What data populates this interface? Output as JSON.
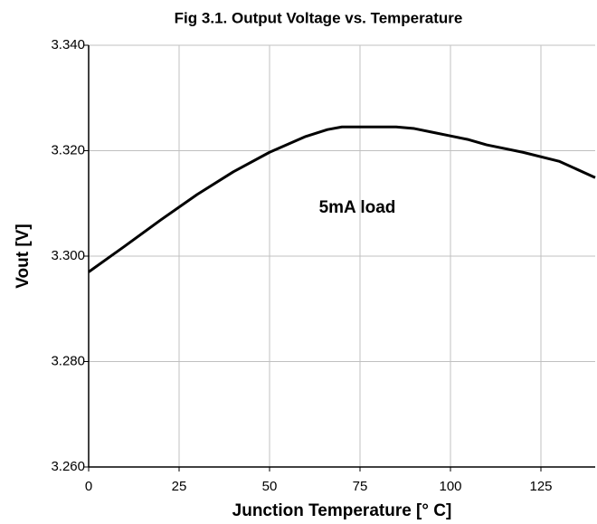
{
  "chart_data": {
    "type": "line",
    "title": "Fig 3.1. Output Voltage vs. Temperature",
    "x_label": "Junction Temperature [° C]",
    "y_label": "Vout [V]",
    "annotation": "5mA load",
    "x": [
      0,
      10,
      20,
      30,
      40,
      50,
      60,
      66,
      70,
      85,
      90,
      95,
      100,
      105,
      110,
      120,
      130,
      140
    ],
    "series": [
      {
        "name": "5mA load",
        "color": "#000000",
        "values": [
          3.297,
          3.3019,
          3.3069,
          3.3117,
          3.316,
          3.3197,
          3.3227,
          3.324,
          3.3245,
          3.3245,
          3.3242,
          3.3235,
          3.3228,
          3.3221,
          3.3211,
          3.3197,
          3.318,
          3.3149
        ]
      }
    ],
    "xlim": [
      0,
      140
    ],
    "xticks": [
      0,
      25,
      50,
      75,
      100,
      125
    ],
    "ylim": [
      3.26,
      3.34
    ],
    "yticks": [
      {
        "value": 3.26,
        "label": "3.260"
      },
      {
        "value": 3.28,
        "label": "3.280"
      },
      {
        "value": 3.3,
        "label": "3.300"
      },
      {
        "value": 3.32,
        "label": "3.320"
      },
      {
        "value": 3.34,
        "label": "3.340"
      }
    ],
    "grid": true
  }
}
